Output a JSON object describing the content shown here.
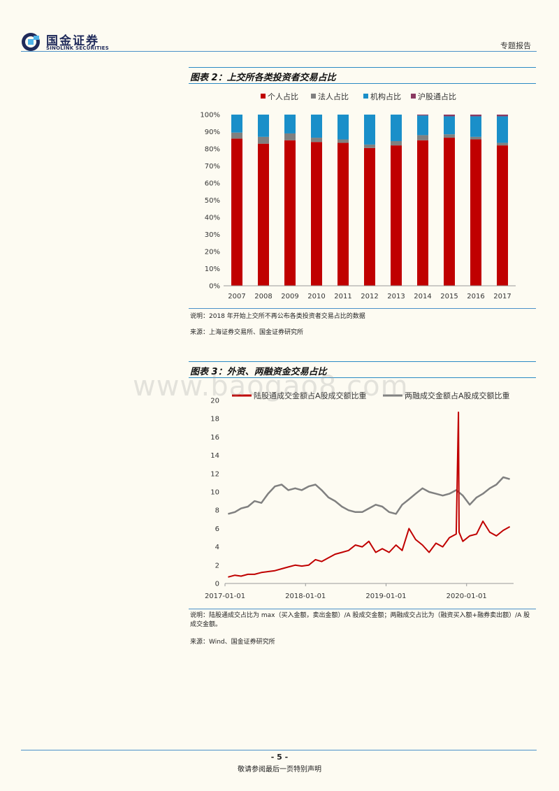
{
  "header": {
    "logo_cn": "国金证券",
    "logo_en": "SINOLINK SECURITIES",
    "report_type": "专题报告"
  },
  "figure2": {
    "title": "图表 2：上交所各类投资者交易占比",
    "note": "说明：2018 年开始上交所不再公布各类投资者交易占比的数据",
    "source": "来源：上海证券交易所、国金证券研究所"
  },
  "figure3": {
    "title": "图表 3：外资、两融资金交易占比",
    "note": "说明：陆股通成交占比为 max（买入金额，卖出金额）/A 股成交金额；两融成交占比为（融资买入额+融券卖出额）/A 股成交金额。",
    "source": "来源：Wind、国金证券研究所"
  },
  "watermark": "www.baogao8.com",
  "footer": {
    "page_number": "- 5 -",
    "disclaimer": "敬请参阅最后一页特别声明"
  },
  "colors": {
    "individual": "#c00000",
    "institutional_legal": "#808080",
    "institution": "#1a8fc9",
    "northbound": "#8b3a62",
    "rule": "#2a8ac4"
  },
  "chart_data": [
    {
      "type": "bar",
      "stacked": true,
      "title": "",
      "categories": [
        "2007",
        "2008",
        "2009",
        "2010",
        "2011",
        "2012",
        "2013",
        "2014",
        "2015",
        "2016",
        "2017"
      ],
      "series": [
        {
          "name": "个人占比",
          "values": [
            86.0,
            83.0,
            85.0,
            84.0,
            83.5,
            80.5,
            82.0,
            85.0,
            86.5,
            85.5,
            82.0
          ]
        },
        {
          "name": "法人占比",
          "values": [
            3.5,
            4.0,
            4.0,
            2.5,
            2.0,
            2.0,
            2.5,
            3.0,
            2.0,
            1.5,
            1.5
          ]
        },
        {
          "name": "机构占比",
          "values": [
            10.5,
            13.0,
            11.0,
            13.5,
            14.5,
            17.5,
            15.5,
            11.5,
            10.5,
            12.0,
            15.5
          ]
        },
        {
          "name": "沪股通占比",
          "values": [
            0,
            0,
            0,
            0,
            0,
            0,
            0,
            0.5,
            1.0,
            1.0,
            1.0
          ]
        }
      ],
      "ylim": [
        0,
        100
      ],
      "yticks": [
        "0%",
        "10%",
        "20%",
        "30%",
        "40%",
        "50%",
        "60%",
        "70%",
        "80%",
        "90%",
        "100%"
      ],
      "legend": "top-center"
    },
    {
      "type": "line",
      "title": "",
      "x_ticks": [
        "2017-01-01",
        "2018-01-01",
        "2019-01-01",
        "2020-01-01"
      ],
      "ylim": [
        0,
        20
      ],
      "yticks": [
        "0",
        "2",
        "4",
        "6",
        "8",
        "10",
        "12",
        "14",
        "16",
        "18",
        "20"
      ],
      "legend": "top",
      "series": [
        {
          "name": "陆股通成交金额占A股成交额比重",
          "x": [
            "2017-01",
            "2017-02",
            "2017-03",
            "2017-04",
            "2017-05",
            "2017-06",
            "2017-07",
            "2017-08",
            "2017-09",
            "2017-10",
            "2017-11",
            "2017-12",
            "2018-01",
            "2018-02",
            "2018-03",
            "2018-04",
            "2018-05",
            "2018-06",
            "2018-07",
            "2018-08",
            "2018-09",
            "2018-10",
            "2018-11",
            "2018-12",
            "2019-01",
            "2019-02",
            "2019-03",
            "2019-04",
            "2019-05",
            "2019-06",
            "2019-07",
            "2019-08",
            "2019-09",
            "2019-10",
            "2019-11",
            "2019-11-25",
            "2019-11-28",
            "2019-12",
            "2020-01",
            "2020-02",
            "2020-03",
            "2020-04",
            "2020-05",
            "2020-06",
            "2020-07"
          ],
          "y": [
            0.7,
            0.9,
            0.8,
            1.0,
            1.0,
            1.2,
            1.3,
            1.4,
            1.6,
            1.8,
            2.0,
            1.9,
            2.0,
            2.6,
            2.4,
            2.8,
            3.2,
            3.4,
            3.6,
            4.2,
            4.0,
            4.6,
            3.4,
            3.8,
            3.4,
            4.2,
            3.6,
            6.0,
            4.8,
            4.2,
            3.4,
            4.4,
            4.0,
            5.0,
            5.4,
            18.7,
            5.6,
            4.6,
            5.2,
            5.4,
            6.8,
            5.6,
            5.2,
            5.8,
            6.2
          ]
        },
        {
          "name": "两融成交金额占A股成交额比重",
          "x": [
            "2017-01",
            "2017-02",
            "2017-03",
            "2017-04",
            "2017-05",
            "2017-06",
            "2017-07",
            "2017-08",
            "2017-09",
            "2017-10",
            "2017-11",
            "2017-12",
            "2018-01",
            "2018-02",
            "2018-03",
            "2018-04",
            "2018-05",
            "2018-06",
            "2018-07",
            "2018-08",
            "2018-09",
            "2018-10",
            "2018-11",
            "2018-12",
            "2019-01",
            "2019-02",
            "2019-03",
            "2019-04",
            "2019-05",
            "2019-06",
            "2019-07",
            "2019-08",
            "2019-09",
            "2019-10",
            "2019-11",
            "2019-12",
            "2020-01",
            "2020-02",
            "2020-03",
            "2020-04",
            "2020-05",
            "2020-06",
            "2020-07"
          ],
          "y": [
            7.6,
            7.8,
            8.2,
            8.4,
            9.0,
            8.8,
            9.8,
            10.6,
            10.8,
            10.2,
            10.4,
            10.2,
            10.6,
            10.8,
            10.2,
            9.4,
            9.0,
            8.4,
            8.0,
            7.8,
            7.8,
            8.2,
            8.6,
            8.4,
            7.8,
            7.6,
            8.6,
            9.2,
            9.8,
            10.4,
            10.0,
            9.8,
            9.6,
            9.8,
            10.2,
            9.6,
            8.6,
            9.4,
            9.8,
            10.4,
            10.8,
            11.6,
            11.4
          ]
        }
      ]
    }
  ]
}
